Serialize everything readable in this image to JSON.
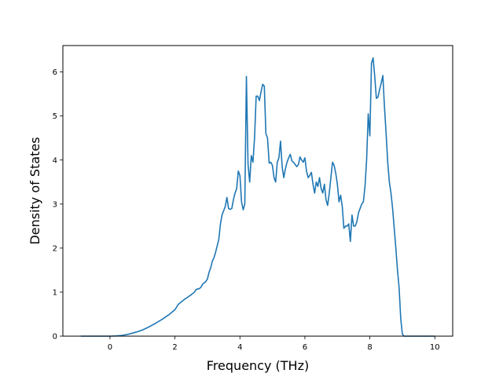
{
  "chart_data": {
    "type": "line",
    "title": "",
    "xlabel": "Frequency (THz)",
    "ylabel": "Density of States",
    "xlim": [
      -1.45,
      10.55
    ],
    "ylim": [
      0,
      6.6
    ],
    "xticks": [
      0,
      2,
      4,
      6,
      8,
      10
    ],
    "yticks": [
      0,
      1,
      2,
      3,
      4,
      5,
      6
    ],
    "grid": false,
    "legend": "none",
    "series": [
      {
        "color": "#1f77b4",
        "points": [
          [
            -0.9,
            0
          ],
          [
            -0.5,
            0
          ],
          [
            0,
            0
          ],
          [
            0.2,
            0.005
          ],
          [
            0.4,
            0.02
          ],
          [
            0.6,
            0.05
          ],
          [
            0.8,
            0.09
          ],
          [
            1.0,
            0.14
          ],
          [
            1.2,
            0.21
          ],
          [
            1.4,
            0.29
          ],
          [
            1.6,
            0.38
          ],
          [
            1.8,
            0.48
          ],
          [
            2.0,
            0.6
          ],
          [
            2.05,
            0.66
          ],
          [
            2.1,
            0.72
          ],
          [
            2.2,
            0.78
          ],
          [
            2.3,
            0.84
          ],
          [
            2.4,
            0.89
          ],
          [
            2.5,
            0.94
          ],
          [
            2.6,
            1.0
          ],
          [
            2.65,
            1.06
          ],
          [
            2.75,
            1.08
          ],
          [
            2.8,
            1.11
          ],
          [
            2.85,
            1.18
          ],
          [
            2.95,
            1.24
          ],
          [
            3.0,
            1.3
          ],
          [
            3.05,
            1.45
          ],
          [
            3.1,
            1.55
          ],
          [
            3.15,
            1.7
          ],
          [
            3.2,
            1.78
          ],
          [
            3.25,
            1.9
          ],
          [
            3.3,
            2.05
          ],
          [
            3.35,
            2.2
          ],
          [
            3.4,
            2.55
          ],
          [
            3.45,
            2.75
          ],
          [
            3.5,
            2.85
          ],
          [
            3.55,
            2.95
          ],
          [
            3.6,
            3.15
          ],
          [
            3.65,
            2.9
          ],
          [
            3.7,
            2.88
          ],
          [
            3.75,
            2.9
          ],
          [
            3.8,
            3.1
          ],
          [
            3.85,
            3.25
          ],
          [
            3.9,
            3.35
          ],
          [
            3.95,
            3.75
          ],
          [
            4.0,
            3.65
          ],
          [
            4.05,
            3.05
          ],
          [
            4.1,
            2.87
          ],
          [
            4.15,
            3.0
          ],
          [
            4.2,
            5.9
          ],
          [
            4.25,
            3.9
          ],
          [
            4.3,
            3.5
          ],
          [
            4.35,
            4.1
          ],
          [
            4.4,
            3.95
          ],
          [
            4.45,
            4.5
          ],
          [
            4.5,
            5.45
          ],
          [
            4.55,
            5.45
          ],
          [
            4.6,
            5.35
          ],
          [
            4.65,
            5.55
          ],
          [
            4.7,
            5.72
          ],
          [
            4.75,
            5.68
          ],
          [
            4.8,
            4.6
          ],
          [
            4.85,
            4.5
          ],
          [
            4.9,
            3.93
          ],
          [
            4.95,
            3.95
          ],
          [
            5.0,
            3.88
          ],
          [
            5.05,
            3.6
          ],
          [
            5.1,
            3.5
          ],
          [
            5.15,
            3.95
          ],
          [
            5.2,
            4.05
          ],
          [
            5.25,
            4.43
          ],
          [
            5.3,
            3.85
          ],
          [
            5.35,
            3.6
          ],
          [
            5.4,
            3.8
          ],
          [
            5.45,
            3.95
          ],
          [
            5.5,
            4.05
          ],
          [
            5.55,
            4.13
          ],
          [
            5.6,
            3.98
          ],
          [
            5.65,
            3.95
          ],
          [
            5.7,
            3.9
          ],
          [
            5.75,
            3.85
          ],
          [
            5.8,
            3.9
          ],
          [
            5.85,
            4.07
          ],
          [
            5.9,
            4.0
          ],
          [
            5.95,
            3.95
          ],
          [
            6.0,
            4.05
          ],
          [
            6.05,
            3.75
          ],
          [
            6.1,
            3.6
          ],
          [
            6.15,
            3.65
          ],
          [
            6.2,
            3.72
          ],
          [
            6.25,
            3.45
          ],
          [
            6.3,
            3.25
          ],
          [
            6.35,
            3.5
          ],
          [
            6.4,
            3.4
          ],
          [
            6.45,
            3.6
          ],
          [
            6.5,
            3.35
          ],
          [
            6.55,
            3.25
          ],
          [
            6.6,
            3.45
          ],
          [
            6.65,
            3.1
          ],
          [
            6.7,
            2.97
          ],
          [
            6.75,
            3.25
          ],
          [
            6.8,
            3.6
          ],
          [
            6.85,
            3.95
          ],
          [
            6.9,
            3.88
          ],
          [
            6.95,
            3.7
          ],
          [
            7.0,
            3.45
          ],
          [
            7.05,
            3.05
          ],
          [
            7.1,
            3.2
          ],
          [
            7.15,
            2.95
          ],
          [
            7.2,
            2.45
          ],
          [
            7.25,
            2.5
          ],
          [
            7.3,
            2.5
          ],
          [
            7.35,
            2.55
          ],
          [
            7.4,
            2.15
          ],
          [
            7.45,
            2.75
          ],
          [
            7.5,
            2.5
          ],
          [
            7.55,
            2.5
          ],
          [
            7.6,
            2.6
          ],
          [
            7.65,
            2.8
          ],
          [
            7.7,
            2.9
          ],
          [
            7.75,
            3.0
          ],
          [
            7.8,
            3.05
          ],
          [
            7.85,
            3.4
          ],
          [
            7.9,
            4.0
          ],
          [
            7.95,
            5.05
          ],
          [
            8.0,
            4.55
          ],
          [
            8.05,
            6.2
          ],
          [
            8.1,
            6.32
          ],
          [
            8.15,
            5.9
          ],
          [
            8.2,
            5.4
          ],
          [
            8.25,
            5.43
          ],
          [
            8.3,
            5.6
          ],
          [
            8.35,
            5.75
          ],
          [
            8.4,
            5.92
          ],
          [
            8.45,
            5.2
          ],
          [
            8.5,
            4.6
          ],
          [
            8.55,
            3.95
          ],
          [
            8.6,
            3.5
          ],
          [
            8.65,
            3.25
          ],
          [
            8.7,
            2.9
          ],
          [
            8.75,
            2.45
          ],
          [
            8.8,
            2.0
          ],
          [
            8.85,
            1.5
          ],
          [
            8.9,
            1.1
          ],
          [
            8.95,
            0.4
          ],
          [
            9.0,
            0.05
          ],
          [
            9.05,
            0
          ],
          [
            9.5,
            0
          ],
          [
            10.0,
            0
          ]
        ]
      }
    ]
  }
}
